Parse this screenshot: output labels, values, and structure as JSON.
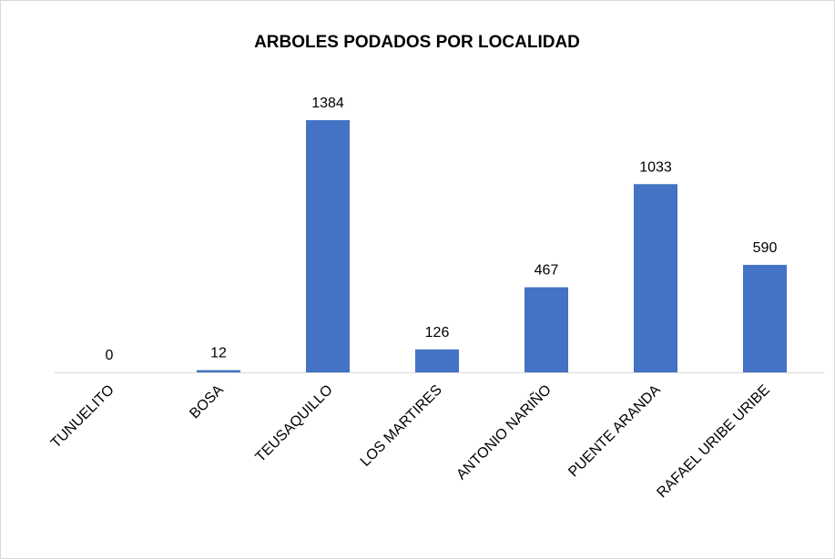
{
  "chart_data": {
    "type": "bar",
    "title": "ARBOLES PODADOS POR LOCALIDAD",
    "categories": [
      "TUNUELITO",
      "BOSA",
      "TEUSAQUILLO",
      "LOS MARTIRES",
      "ANTONIO NARIÑO",
      "PUENTE ARANDA",
      "RAFAEL URIBE URIBE"
    ],
    "values": [
      0,
      12,
      1384,
      126,
      467,
      1033,
      590
    ],
    "color": "#4472c4"
  }
}
